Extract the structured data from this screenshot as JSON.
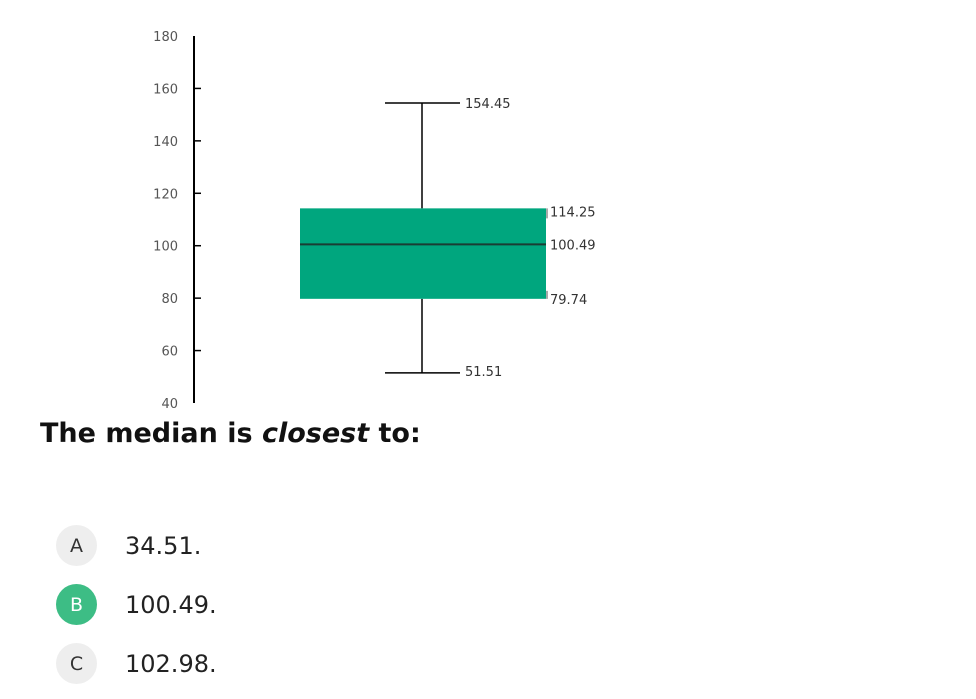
{
  "chart_data": {
    "type": "box",
    "ylim": [
      40,
      180
    ],
    "y_ticks": [
      40,
      60,
      80,
      100,
      120,
      140,
      160,
      180
    ],
    "whisker_high": 154.45,
    "q3": 114.25,
    "median": 100.49,
    "q1": 79.74,
    "whisker_low": 51.51,
    "labels": {
      "whisker_high": "154.45",
      "q3": "114.25",
      "median": "100.49",
      "q1": "79.74",
      "whisker_low": "51.51"
    },
    "box_color": "#00a67e"
  },
  "question": {
    "prefix": "The median is ",
    "emphasis": "closest",
    "suffix": " to:"
  },
  "options": [
    {
      "letter": "A",
      "text": "34.51.",
      "selected": false
    },
    {
      "letter": "B",
      "text": "100.49.",
      "selected": true
    },
    {
      "letter": "C",
      "text": "102.98.",
      "selected": false
    }
  ],
  "colors": {
    "selected_badge": "#3dbd85",
    "badge": "#eeeeee"
  }
}
